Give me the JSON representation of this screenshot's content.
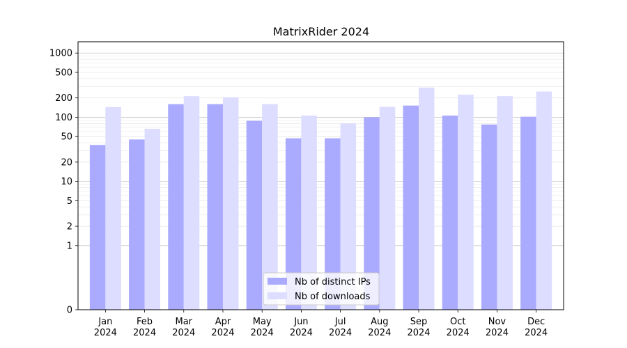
{
  "chart_data": {
    "type": "bar",
    "title": "MatrixRider 2024",
    "xlabel": "",
    "ylabel": "",
    "yscale": "symlog",
    "categories": [
      [
        "Jan",
        "2024"
      ],
      [
        "Feb",
        "2024"
      ],
      [
        "Mar",
        "2024"
      ],
      [
        "Apr",
        "2024"
      ],
      [
        "May",
        "2024"
      ],
      [
        "Jun",
        "2024"
      ],
      [
        "Jul",
        "2024"
      ],
      [
        "Aug",
        "2024"
      ],
      [
        "Sep",
        "2024"
      ],
      [
        "Oct",
        "2024"
      ],
      [
        "Nov",
        "2024"
      ],
      [
        "Dec",
        "2024"
      ]
    ],
    "series": [
      {
        "name": "Nb of distinct IPs",
        "color": "#aaaaff",
        "values": [
          37,
          45,
          160,
          160,
          88,
          47,
          47,
          100,
          152,
          106,
          77,
          102
        ]
      },
      {
        "name": "Nb of downloads",
        "color": "#ddddff",
        "values": [
          144,
          66,
          213,
          205,
          160,
          106,
          80,
          145,
          290,
          225,
          213,
          252
        ]
      }
    ],
    "yticks": [
      {
        "value": 0,
        "label": "0"
      },
      {
        "value": 1,
        "label": "1"
      },
      {
        "value": 2,
        "label": "2"
      },
      {
        "value": 5,
        "label": "5"
      },
      {
        "value": 10,
        "label": "10"
      },
      {
        "value": 20,
        "label": "20"
      },
      {
        "value": 50,
        "label": "50"
      },
      {
        "value": 100,
        "label": "100"
      },
      {
        "value": 200,
        "label": "200"
      },
      {
        "value": 500,
        "label": "500"
      },
      {
        "value": 1000,
        "label": "1000"
      }
    ],
    "ylim": [
      0,
      1500
    ],
    "grid": true,
    "legend_position": "bottom-center"
  }
}
